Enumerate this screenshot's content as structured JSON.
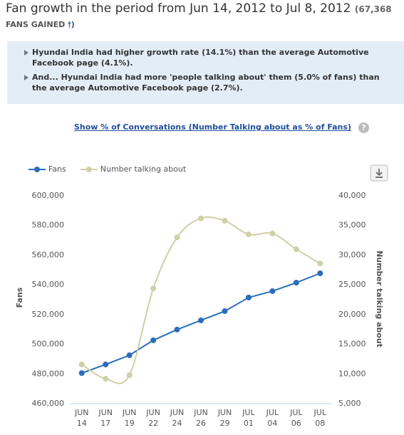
{
  "header": {
    "title": "Fan growth in the period from Jun 14, 2012 to Jul 8, 2012",
    "gain": "(67,368",
    "gain_label": "FANS GAINED",
    "gain_close": ")"
  },
  "insights": [
    "Hyundai India had higher growth rate (14.1%) than the average Automotive Facebook page (4.1%).",
    "And... Hyundai India had more 'people talking about' them (5.0% of fans) than the average Automotive Facebook page (2.7%)."
  ],
  "link": "Show % of Conversations (Number Talking about as % of Fans)",
  "help": "?",
  "chart_data": {
    "type": "line",
    "categories": [
      "JUN 14",
      "JUN 17",
      "JUN 19",
      "JUN 22",
      "JUN 24",
      "JUN 26",
      "JUN 29",
      "JUL 01",
      "JUL 04",
      "JUL 06",
      "JUL 08"
    ],
    "series": [
      {
        "name": "Fans",
        "color": "#2a6ebb",
        "axis": "y",
        "smooth": false,
        "values": [
          480600,
          486400,
          492600,
          502700,
          509900,
          516100,
          522300,
          531500,
          535800,
          541500,
          547800
        ]
      },
      {
        "name": "Number talking about",
        "color": "#cfd0a6",
        "axis": "y2",
        "smooth": true,
        "values": [
          11600,
          9200,
          9800,
          24400,
          33000,
          36200,
          35800,
          33500,
          33650,
          31000,
          28600
        ]
      }
    ],
    "ylabel": "Fans",
    "y2label": "Number talking about",
    "ylim": [
      460000,
      600000
    ],
    "yticks": [
      {
        "value": 460000,
        "label": "460,000"
      },
      {
        "value": 480000,
        "label": "480,000"
      },
      {
        "value": 500000,
        "label": "500,000"
      },
      {
        "value": 520000,
        "label": "520,000"
      },
      {
        "value": 540000,
        "label": "540,000"
      },
      {
        "value": 560000,
        "label": "560,000"
      },
      {
        "value": 580000,
        "label": "580,000"
      },
      {
        "value": 600000,
        "label": "600,000"
      }
    ],
    "y2lim": [
      5000,
      40000
    ],
    "y2ticks": [
      {
        "value": 5000,
        "label": "5,000"
      },
      {
        "value": 10000,
        "label": "10,000"
      },
      {
        "value": 15000,
        "label": "15,000"
      },
      {
        "value": 20000,
        "label": "20,000"
      },
      {
        "value": 25000,
        "label": "25,000"
      },
      {
        "value": 30000,
        "label": "30,000"
      },
      {
        "value": 35000,
        "label": "35,000"
      },
      {
        "value": 40000,
        "label": "40,000"
      }
    ],
    "grid": false,
    "legend": "top-left"
  }
}
